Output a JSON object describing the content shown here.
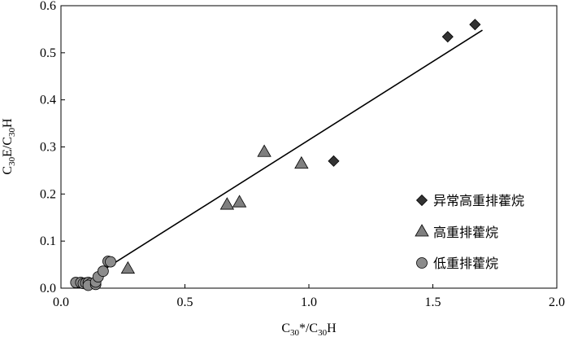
{
  "chart_data": {
    "type": "scatter",
    "x_axis": {
      "label_main": "C",
      "label_sub1": "30",
      "label_mid": "*/C",
      "label_sub2": "30",
      "label_end": "H",
      "range": [
        0,
        2.0
      ],
      "ticks": [
        0.0,
        0.5,
        1.0,
        1.5,
        2.0
      ],
      "tick_labels": [
        "0.0",
        "0.5",
        "1.0",
        "1.5",
        "2.0"
      ]
    },
    "y_axis": {
      "label_main": "C",
      "label_sub1": "30",
      "label_mid": "E/C",
      "label_sub2": "30",
      "label_end": "H",
      "range": [
        0,
        0.6
      ],
      "ticks": [
        0.0,
        0.1,
        0.2,
        0.3,
        0.4,
        0.5,
        0.6
      ],
      "tick_labels": [
        "0.0",
        "0.1",
        "0.2",
        "0.3",
        "0.4",
        "0.5",
        "0.6"
      ]
    },
    "grid": false,
    "legend_position": "bottom-right",
    "series": [
      {
        "name": "异常高重排藿烷",
        "marker": "diamond",
        "color": "#333333",
        "points": [
          {
            "x": 1.1,
            "y": 0.27
          },
          {
            "x": 1.56,
            "y": 0.534
          },
          {
            "x": 1.67,
            "y": 0.56
          }
        ]
      },
      {
        "name": "高重排藿烷",
        "marker": "triangle",
        "color": "#7f7f7f",
        "points": [
          {
            "x": 0.27,
            "y": 0.042
          },
          {
            "x": 0.67,
            "y": 0.178
          },
          {
            "x": 0.72,
            "y": 0.183
          },
          {
            "x": 0.82,
            "y": 0.29
          },
          {
            "x": 0.97,
            "y": 0.265
          }
        ]
      },
      {
        "name": "低重排藿烷",
        "marker": "circle",
        "color": "#8c8c8c",
        "points": [
          {
            "x": 0.06,
            "y": 0.012
          },
          {
            "x": 0.08,
            "y": 0.012
          },
          {
            "x": 0.09,
            "y": 0.01
          },
          {
            "x": 0.1,
            "y": 0.011
          },
          {
            "x": 0.11,
            "y": 0.012
          },
          {
            "x": 0.12,
            "y": 0.01
          },
          {
            "x": 0.11,
            "y": 0.006
          },
          {
            "x": 0.14,
            "y": 0.008
          },
          {
            "x": 0.14,
            "y": 0.013
          },
          {
            "x": 0.15,
            "y": 0.024
          },
          {
            "x": 0.17,
            "y": 0.036
          },
          {
            "x": 0.19,
            "y": 0.057
          },
          {
            "x": 0.2,
            "y": 0.056
          }
        ]
      }
    ],
    "trendline": {
      "x": [
        0.13,
        1.7
      ],
      "y": [
        0.025,
        0.548
      ]
    }
  }
}
